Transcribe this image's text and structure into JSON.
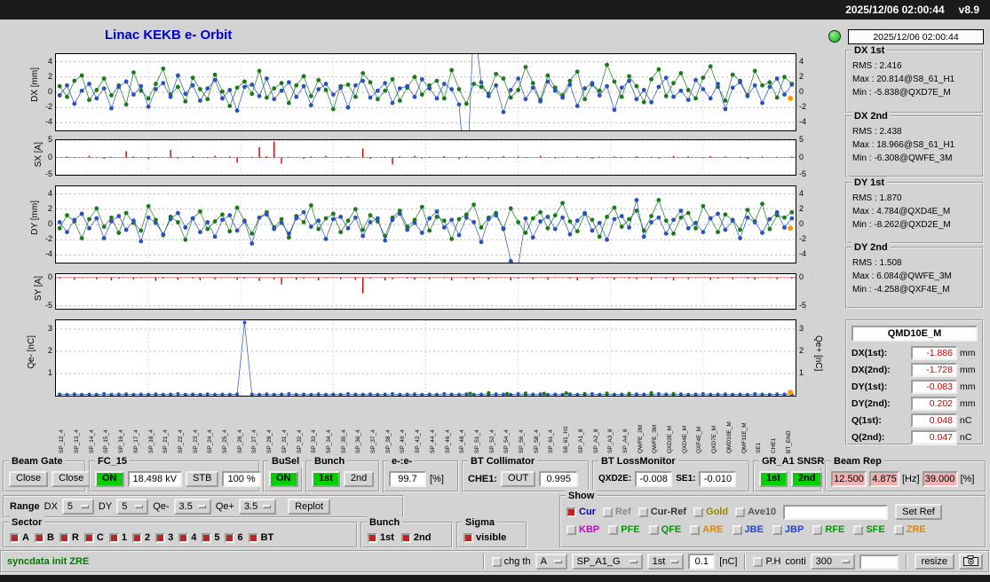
{
  "header": {
    "datetime": "2025/12/06 02:00:44",
    "version": "v8.9"
  },
  "title": "Linac KEKB e- Orbit",
  "status_time": "2025/12/06 02:00:44",
  "colors": {
    "accent_green": "#00cf00",
    "value_red": "#cc0000",
    "pink_field": "#f2b0b0",
    "title_blue": "#0000cc",
    "indicator_green": "#00b400",
    "series_1st": "#1a7a1a",
    "series_2nd": "#2a52be",
    "steering_red": "#cc0000",
    "end_marker": "#ff9900"
  },
  "stats": [
    {
      "label": "DX 1st",
      "rms": "RMS : 2.416",
      "max": "Max : 20.814@S8_61_H1",
      "min": "Min : -5.838@QXD7E_M"
    },
    {
      "label": "DX 2nd",
      "rms": "RMS : 2.438",
      "max": "Max : 18.966@S8_61_H1",
      "min": "Min : -6.308@QWFE_3M"
    },
    {
      "label": "DY 1st",
      "rms": "RMS : 1.870",
      "max": "Max : 4.784@QXD4E_M",
      "min": "Min : -8.262@QXD2E_M"
    },
    {
      "label": "DY 2nd",
      "rms": "RMS : 1.508",
      "max": "Max : 6.084@QWFE_3M",
      "min": "Min : -4.258@QXF4E_M"
    }
  ],
  "monitor": {
    "title": "QMD10E_M",
    "rows": [
      {
        "label": "DX(1st):",
        "value": "-1.886",
        "unit": "mm"
      },
      {
        "label": "DX(2nd):",
        "value": "-1.728",
        "unit": "mm"
      },
      {
        "label": "DY(1st):",
        "value": "-0.083",
        "unit": "mm"
      },
      {
        "label": "DY(2nd):",
        "value": "0.202",
        "unit": "mm"
      },
      {
        "label": "Q(1st):",
        "value": "0.048",
        "unit": "nC"
      },
      {
        "label": "Q(2nd):",
        "value": "0.047",
        "unit": "nC"
      }
    ]
  },
  "controls": {
    "beam_gate": {
      "label": "Beam Gate",
      "close1": "Close",
      "close2": "Close"
    },
    "fc15": {
      "label": "FC_15",
      "on": "ON",
      "kv": "18.498 kV",
      "stb": "STB",
      "pct": "100 %"
    },
    "busel": {
      "label": "BuSel",
      "on": "ON"
    },
    "bunch": {
      "label": "Bunch",
      "b1": "1st",
      "b2": "2nd"
    },
    "eratio": {
      "label": "e-:e-",
      "value": "99.7",
      "unit": "[%]"
    },
    "bt_collimator": {
      "label": "BT Collimator",
      "che1": "CHE1:",
      "out": "OUT",
      "value": "0.995"
    },
    "bt_loss": {
      "label": "BT LossMonitor",
      "l1": "QXD2E:",
      "v1": "-0.008",
      "l2": "SE1:",
      "v2": "-0.010"
    },
    "gr_a1": {
      "label": "GR_A1 SNSR",
      "b1": "1st",
      "b2": "2nd"
    },
    "beam_rep": {
      "label": "Beam Rep",
      "v1": "12.500",
      "v2": "4.875",
      "hz": "[Hz]",
      "v3": "39.000",
      "pct": "[%]"
    },
    "range": {
      "title": "Range",
      "dx_label": "DX",
      "dx_val": "5",
      "dy_label": "DY",
      "dy_val": "5",
      "qm_label": "Qe-",
      "qm_val": "3.5",
      "qp_label": "Qe+",
      "qp_val": "3.5",
      "replot": "Replot"
    },
    "sector": {
      "label": "Sector",
      "items": [
        "A",
        "B",
        "R",
        "C",
        "1",
        "2",
        "3",
        "4",
        "5",
        "6",
        "BT"
      ],
      "checked": "all"
    },
    "bunch2": {
      "label": "Bunch",
      "items": [
        "1st",
        "2nd"
      ],
      "checked": "all"
    },
    "sigma": {
      "label": "Sigma",
      "items": [
        "visible"
      ],
      "checked": "all"
    },
    "show": {
      "label": "Show",
      "row1": [
        {
          "label": "Cur",
          "color": "#0000cc",
          "checked": true
        },
        {
          "label": "Ref",
          "color": "#8a8a8a",
          "checked": false
        },
        {
          "label": "Cur-Ref",
          "color": "#333333",
          "checked": false
        },
        {
          "label": "Gold",
          "color": "#998800",
          "checked": false
        },
        {
          "label": "Ave10",
          "color": "#555555",
          "checked": false
        }
      ],
      "set_ref": "Set Ref",
      "row2": [
        {
          "label": "KBP",
          "color": "#cc00cc",
          "checked": false
        },
        {
          "label": "PFE",
          "color": "#009900",
          "checked": false
        },
        {
          "label": "QFE",
          "color": "#009900",
          "checked": false
        },
        {
          "label": "ARE",
          "color": "#dd8800",
          "checked": false
        },
        {
          "label": "JBE",
          "color": "#2244cc",
          "checked": false
        },
        {
          "label": "JBP",
          "color": "#2244cc",
          "checked": false
        },
        {
          "label": "RFE",
          "color": "#009900",
          "checked": false
        },
        {
          "label": "SFE",
          "color": "#009900",
          "checked": false
        },
        {
          "label": "ZRE",
          "color": "#dd8800",
          "checked": false
        }
      ]
    },
    "statusbar": {
      "message": "syncdata init ZRE",
      "chg_th": "chg th",
      "dd1": "A",
      "dd2": "SP_A1_G",
      "dd3": "1st",
      "thr": "0.1",
      "nc": "[nC]",
      "ph": "P.H",
      "conti": "conti",
      "dd4": "300",
      "resize": "resize"
    }
  },
  "x_axis_labels": [
    "SP_12_4",
    "SP_13_4",
    "SP_14_4",
    "SP_15_4",
    "SP_16_4",
    "SP_17_4",
    "SP_18_4",
    "SP_21_4",
    "SP_22_4",
    "SP_23_4",
    "SP_24_4",
    "SP_25_4",
    "SP_26_4",
    "SP_27_4",
    "SP_28_4",
    "SP_31_4",
    "SP_32_4",
    "SP_33_4",
    "SP_34_4",
    "SP_35_4",
    "SP_36_4",
    "SP_37_4",
    "SP_38_4",
    "SP_40_4",
    "SP_42_4",
    "SP_44_4",
    "SP_46_4",
    "SP_48_4",
    "SP_51_4",
    "SP_52_4",
    "SP_54_4",
    "SP_56_4",
    "SP_58_4",
    "SP_61_4",
    "S8_61_H1",
    "SP_A1_8",
    "SP_A2_8",
    "SP_A3_8",
    "SP_A4_8",
    "QWFE_2M",
    "QWFE_3M",
    "QXD2E_M",
    "QXD4E_M",
    "QXF4E_M",
    "QXD7E_M",
    "QMD10E_M",
    "QMF11E_M",
    "SE1",
    "CHE1",
    "BT_END"
  ],
  "chart_data": [
    {
      "id": "dx",
      "type": "scatter",
      "ylabel": "DX [mm]",
      "ylim": [
        -5,
        5
      ],
      "yticks": [
        4,
        2,
        0,
        -2,
        -4
      ],
      "series": [
        {
          "name": "1st",
          "color": "#1a7a1a",
          "values": [
            0.8,
            -0.6,
            1.5,
            2.2,
            -1.0,
            0.3,
            1.8,
            -0.4,
            0.9,
            -1.6,
            2.6,
            0.2,
            -0.8,
            1.1,
            3.1,
            -0.3,
            0.7,
            -1.2,
            1.9,
            0.4,
            -0.9,
            2.3,
            0.1,
            -1.8,
            0.6,
            1.4,
            -0.2,
            2.8,
            -0.7,
            0.5,
            1.2,
            -1.4,
            0.9,
            2.1,
            -0.5,
            1.6,
            0.3,
            -2.2,
            0.8,
            1.0,
            -0.6,
            2.5,
            1.3,
            -0.9,
            0.2,
            1.7,
            -1.1,
            0.6,
            2.0,
            -0.3,
            0.9,
            1.5,
            -0.8,
            2.9,
            0.4,
            -1.5,
            1.1,
            0.7,
            -0.2,
            2.4,
            1.8,
            -0.7,
            0.3,
            3.3,
            1.2,
            -1.0,
            2.2,
            0.6,
            -0.4,
            1.5,
            2.7,
            -0.9,
            1.0,
            0.2,
            3.6,
            1.4,
            -0.6,
            2.1,
            0.8,
            -1.3,
            1.7,
            3.0,
            -0.5,
            1.2,
            2.5,
            0.3,
            -0.8,
            1.9,
            3.4,
            0.7,
            -1.1,
            2.3,
            1.5,
            -0.4,
            2.8,
            0.9,
            1.3,
            -0.7,
            2.0,
            1.1
          ]
        },
        {
          "name": "2nd",
          "color": "#2a52be",
          "values": [
            -0.4,
            0.9,
            -1.5,
            0.2,
            1.1,
            -0.8,
            0.5,
            -2.1,
            0.7,
            1.4,
            -0.3,
            0.8,
            -1.9,
            0.4,
            1.2,
            -0.6,
            2.2,
            -0.2,
            0.9,
            -1.1,
            0.5,
            1.6,
            -0.8,
            0.3,
            -2.4,
            0.7,
            1.0,
            -0.5,
            1.8,
            -0.9,
            0.2,
            1.3,
            -0.6,
            0.8,
            -1.7,
            0.4,
            1.1,
            -0.3,
            0.6,
            -2.0,
            0.9,
            1.5,
            -0.7,
            0.2,
            1.2,
            -1.4,
            0.5,
            0.8,
            -0.6,
            1.7,
            0.5,
            -0.8,
            1.1,
            0.4,
            -1.6,
            -13.0,
            9.5,
            1.3,
            -0.5,
            0.9,
            -2.6,
            0.3,
            1.8,
            -0.9,
            0.6,
            -1.2,
            1.4,
            0.2,
            -0.7,
            1.0,
            -1.8,
            0.5,
            1.2,
            -0.4,
            0.8,
            -2.3,
            0.6,
            1.5,
            -0.9,
            0.3,
            -1.3,
            0.7,
            1.9,
            -0.6,
            0.2,
            -1.0,
            1.6,
            0.4,
            -0.8,
            1.1,
            -2.2,
            0.6,
            1.3,
            -0.5,
            0.9,
            -1.4,
            0.7,
            1.8,
            -0.3,
            1.0
          ]
        }
      ],
      "end_marker": {
        "x": 0.993,
        "y": -0.8,
        "color": "#ff9900"
      }
    },
    {
      "id": "sx",
      "type": "bars",
      "ylabel": "SX [A]",
      "ylim": [
        -5,
        5
      ],
      "yticks": [
        5,
        0,
        -5
      ],
      "color": "#cc0000",
      "values": [
        0,
        0.3,
        -0.2,
        0,
        0.5,
        0,
        -0.4,
        0.2,
        0,
        1.8,
        0.3,
        0,
        -0.5,
        0.2,
        0,
        2.2,
        -0.3,
        0,
        0.4,
        0,
        -0.2,
        0.5,
        0,
        0.3,
        -1.5,
        0,
        0.2,
        3.0,
        0.4,
        4.6,
        -1.8,
        0.2,
        0,
        -0.4,
        0.3,
        0,
        0.5,
        0,
        -0.2,
        0.3,
        0,
        2.6,
        -0.4,
        0,
        0.2,
        -2.0,
        0.3,
        0,
        0.5,
        -0.3,
        0.2,
        0,
        0.4,
        0,
        -0.5,
        0.3,
        0,
        0.2,
        -0.3,
        0,
        0.4,
        0,
        0.3,
        -0.2,
        0,
        0.5,
        0,
        -0.3,
        0.2,
        0,
        0.3,
        0,
        -0.4,
        0.2,
        0,
        0.3,
        -0.2,
        0,
        0.4,
        0,
        0.2,
        -0.3,
        0,
        0.5,
        0,
        0.3,
        0,
        -0.2,
        0.4,
        0,
        0.3,
        0,
        0.2,
        -0.4,
        0,
        0.3,
        0,
        0.2,
        0,
        0.3
      ]
    },
    {
      "id": "dy",
      "type": "scatter",
      "ylabel": "DY [mm]",
      "ylim": [
        -5,
        5
      ],
      "yticks": [
        4,
        2,
        0,
        -2,
        -4
      ],
      "series": [
        {
          "name": "1st",
          "color": "#1a7a1a",
          "values": [
            -0.5,
            1.2,
            0.4,
            -1.8,
            0.7,
            2.1,
            -0.3,
            0.9,
            -1.1,
            1.5,
            0.2,
            -0.8,
            2.4,
            0.6,
            -1.4,
            1.0,
            0.3,
            -2.0,
            0.8,
            1.7,
            -0.6,
            0.4,
            1.3,
            -0.9,
            2.2,
            0.5,
            -1.2,
            0.9,
            1.6,
            -0.4,
            0.7,
            -1.7,
            1.1,
            0.3,
            2.5,
            -0.6,
            0.8,
            1.4,
            -1.0,
            0.5,
            2.0,
            -0.7,
            1.2,
            0.4,
            -1.5,
            0.9,
            1.8,
            -0.3,
            0.6,
            2.3,
            -0.8,
            1.0,
            0.5,
            -1.9,
            0.7,
            1.3,
            2.6,
            -0.4,
            0.9,
            1.5,
            -0.6,
            2.1,
            0.3,
            -1.1,
            0.8,
            1.6,
            -0.5,
            1.2,
            2.8,
            0.4,
            -0.9,
            1.4,
            0.6,
            -1.6,
            1.0,
            2.2,
            -0.3,
            0.7,
            1.8,
            -0.8,
            1.1,
            3.2,
            0.5,
            -1.2,
            0.9,
            1.5,
            -0.5,
            2.4,
            0.8,
            -1.0,
            1.3,
            0.6,
            -0.7,
            1.9,
            0.4,
            2.7,
            -0.6,
            1.2,
            0.9,
            1.6
          ]
        },
        {
          "name": "2nd",
          "color": "#2a52be",
          "values": [
            0.3,
            -1.0,
            0.6,
            1.4,
            -0.5,
            0.8,
            -1.8,
            0.4,
            1.1,
            -0.7,
            0.5,
            -2.2,
            0.9,
            0.2,
            -1.3,
            0.7,
            1.5,
            -0.4,
            0.8,
            -1.0,
            0.3,
            -1.6,
            0.6,
            1.2,
            -0.8,
            0.4,
            -2.5,
            0.9,
            1.3,
            -0.6,
            0.2,
            -1.2,
            0.8,
            1.6,
            -0.3,
            0.5,
            -1.9,
            0.7,
            1.0,
            -0.5,
            0.9,
            -1.5,
            0.3,
            0.8,
            -2.1,
            0.6,
            1.4,
            -0.7,
            0.2,
            -1.1,
            0.8,
            1.7,
            -0.4,
            0.6,
            -1.4,
            0.9,
            0.3,
            -2.3,
            0.7,
            1.2,
            -0.5,
            -4.8,
            -5.5,
            0.8,
            -1.7,
            0.4,
            1.0,
            -0.6,
            0.9,
            -1.3,
            0.5,
            1.5,
            -0.8,
            0.2,
            -2.0,
            0.7,
            1.1,
            -0.4,
            3.2,
            -1.6,
            0.3,
            0.9,
            -1.2,
            0.6,
            1.8,
            -0.5,
            0.2,
            -1.0,
            0.8,
            1.4,
            -0.7,
            0.5,
            -1.8,
            0.9,
            0.3,
            -1.1,
            0.7,
            1.6,
            -0.4,
            0.8
          ]
        }
      ],
      "end_marker": {
        "x": 0.993,
        "y": -0.5,
        "color": "#ff9900"
      }
    },
    {
      "id": "sy",
      "type": "bars",
      "ylabel": "SY [A]",
      "ylim": [
        -5.5,
        0.6
      ],
      "yticks": [
        0,
        -5
      ],
      "color": "#cc0000",
      "values": [
        -0.2,
        0,
        -0.4,
        -0.1,
        0,
        -0.3,
        0,
        -0.5,
        -0.2,
        0,
        -0.3,
        -0.1,
        0,
        -0.6,
        -0.2,
        0,
        -0.4,
        0,
        -0.2,
        -0.5,
        0,
        -0.3,
        -0.1,
        0,
        -0.4,
        -0.2,
        0,
        -0.6,
        0,
        -0.3,
        -1.2,
        0,
        -0.4,
        -0.2,
        0,
        -0.5,
        -0.1,
        0,
        -0.3,
        0,
        -0.4,
        -2.8,
        -0.2,
        0,
        -0.5,
        -0.3,
        0,
        -0.2,
        -0.4,
        0,
        -0.3,
        0,
        -0.1,
        -0.5,
        0,
        -0.2,
        -0.4,
        0,
        -0.3,
        -0.1,
        0,
        -0.5,
        -0.2,
        0,
        -0.3,
        0,
        -0.4,
        -0.1,
        0,
        -0.2,
        -0.5,
        0,
        -0.3,
        0,
        -0.1,
        -0.4,
        0,
        -0.2,
        -0.3,
        0,
        -0.4,
        0,
        -0.2,
        -0.5,
        0,
        -0.3,
        -0.1,
        0,
        -0.4,
        -0.2,
        0,
        -0.3,
        0,
        -0.2,
        -0.4,
        0,
        -0.1,
        -0.3,
        0,
        -0.2
      ]
    },
    {
      "id": "q",
      "type": "charge",
      "ylabel": "Qe- [nC]",
      "ylabel_right": "Qe+ [nC]",
      "ylim": [
        0,
        3.4
      ],
      "yticks": [
        3,
        2,
        1
      ],
      "color": "#2a52be",
      "green_color": "#1a7a1a",
      "values": [
        0.06,
        0.05,
        0.07,
        0.05,
        0.06,
        0.05,
        0.08,
        0.05,
        0.06,
        0.07,
        0.05,
        0.06,
        0.05,
        0.07,
        0.05,
        0.06,
        0.08,
        0.05,
        0.06,
        0.05,
        0.07,
        0.05,
        0.06,
        0.05,
        0.07,
        3.3,
        0.06,
        0.05,
        0.07,
        0.05,
        0.06,
        0.08,
        0.05,
        0.06,
        0.05,
        0.07,
        0.05,
        0.06,
        0.05,
        0.08,
        0.06,
        0.05,
        0.07,
        0.05,
        0.06,
        0.08,
        0.05,
        0.06,
        0.07,
        0.05,
        0.06,
        0.05,
        0.08,
        0.06,
        0.05,
        0.07,
        0.05,
        0.06,
        0.05,
        0.07,
        0.06,
        0.05,
        0.08,
        0.05,
        0.06,
        0.07,
        0.05,
        0.06,
        0.05,
        0.07,
        0.05,
        0.06,
        0.08,
        0.05,
        0.07,
        0.05,
        0.06,
        0.05,
        0.07,
        0.06,
        0.05,
        0.08,
        0.06,
        0.05,
        0.07,
        0.05,
        0.06,
        0.08,
        0.05,
        0.06,
        0.07,
        0.05,
        0.06,
        0.05,
        0.08,
        0.06,
        0.05,
        0.07,
        0.06,
        0.05
      ],
      "green_points": [
        [
          0.56,
          0.09
        ],
        [
          0.585,
          0.12
        ],
        [
          0.61,
          0.08
        ],
        [
          0.635,
          0.1
        ],
        [
          0.66,
          0.09
        ],
        [
          0.69,
          0.11
        ],
        [
          0.715,
          0.08
        ],
        [
          0.745,
          0.1
        ],
        [
          0.775,
          0.09
        ],
        [
          0.805,
          0.12
        ],
        [
          0.835,
          0.08
        ]
      ],
      "end_marker": {
        "x": 0.993,
        "y": 0.15,
        "color": "#ff9900"
      }
    }
  ]
}
